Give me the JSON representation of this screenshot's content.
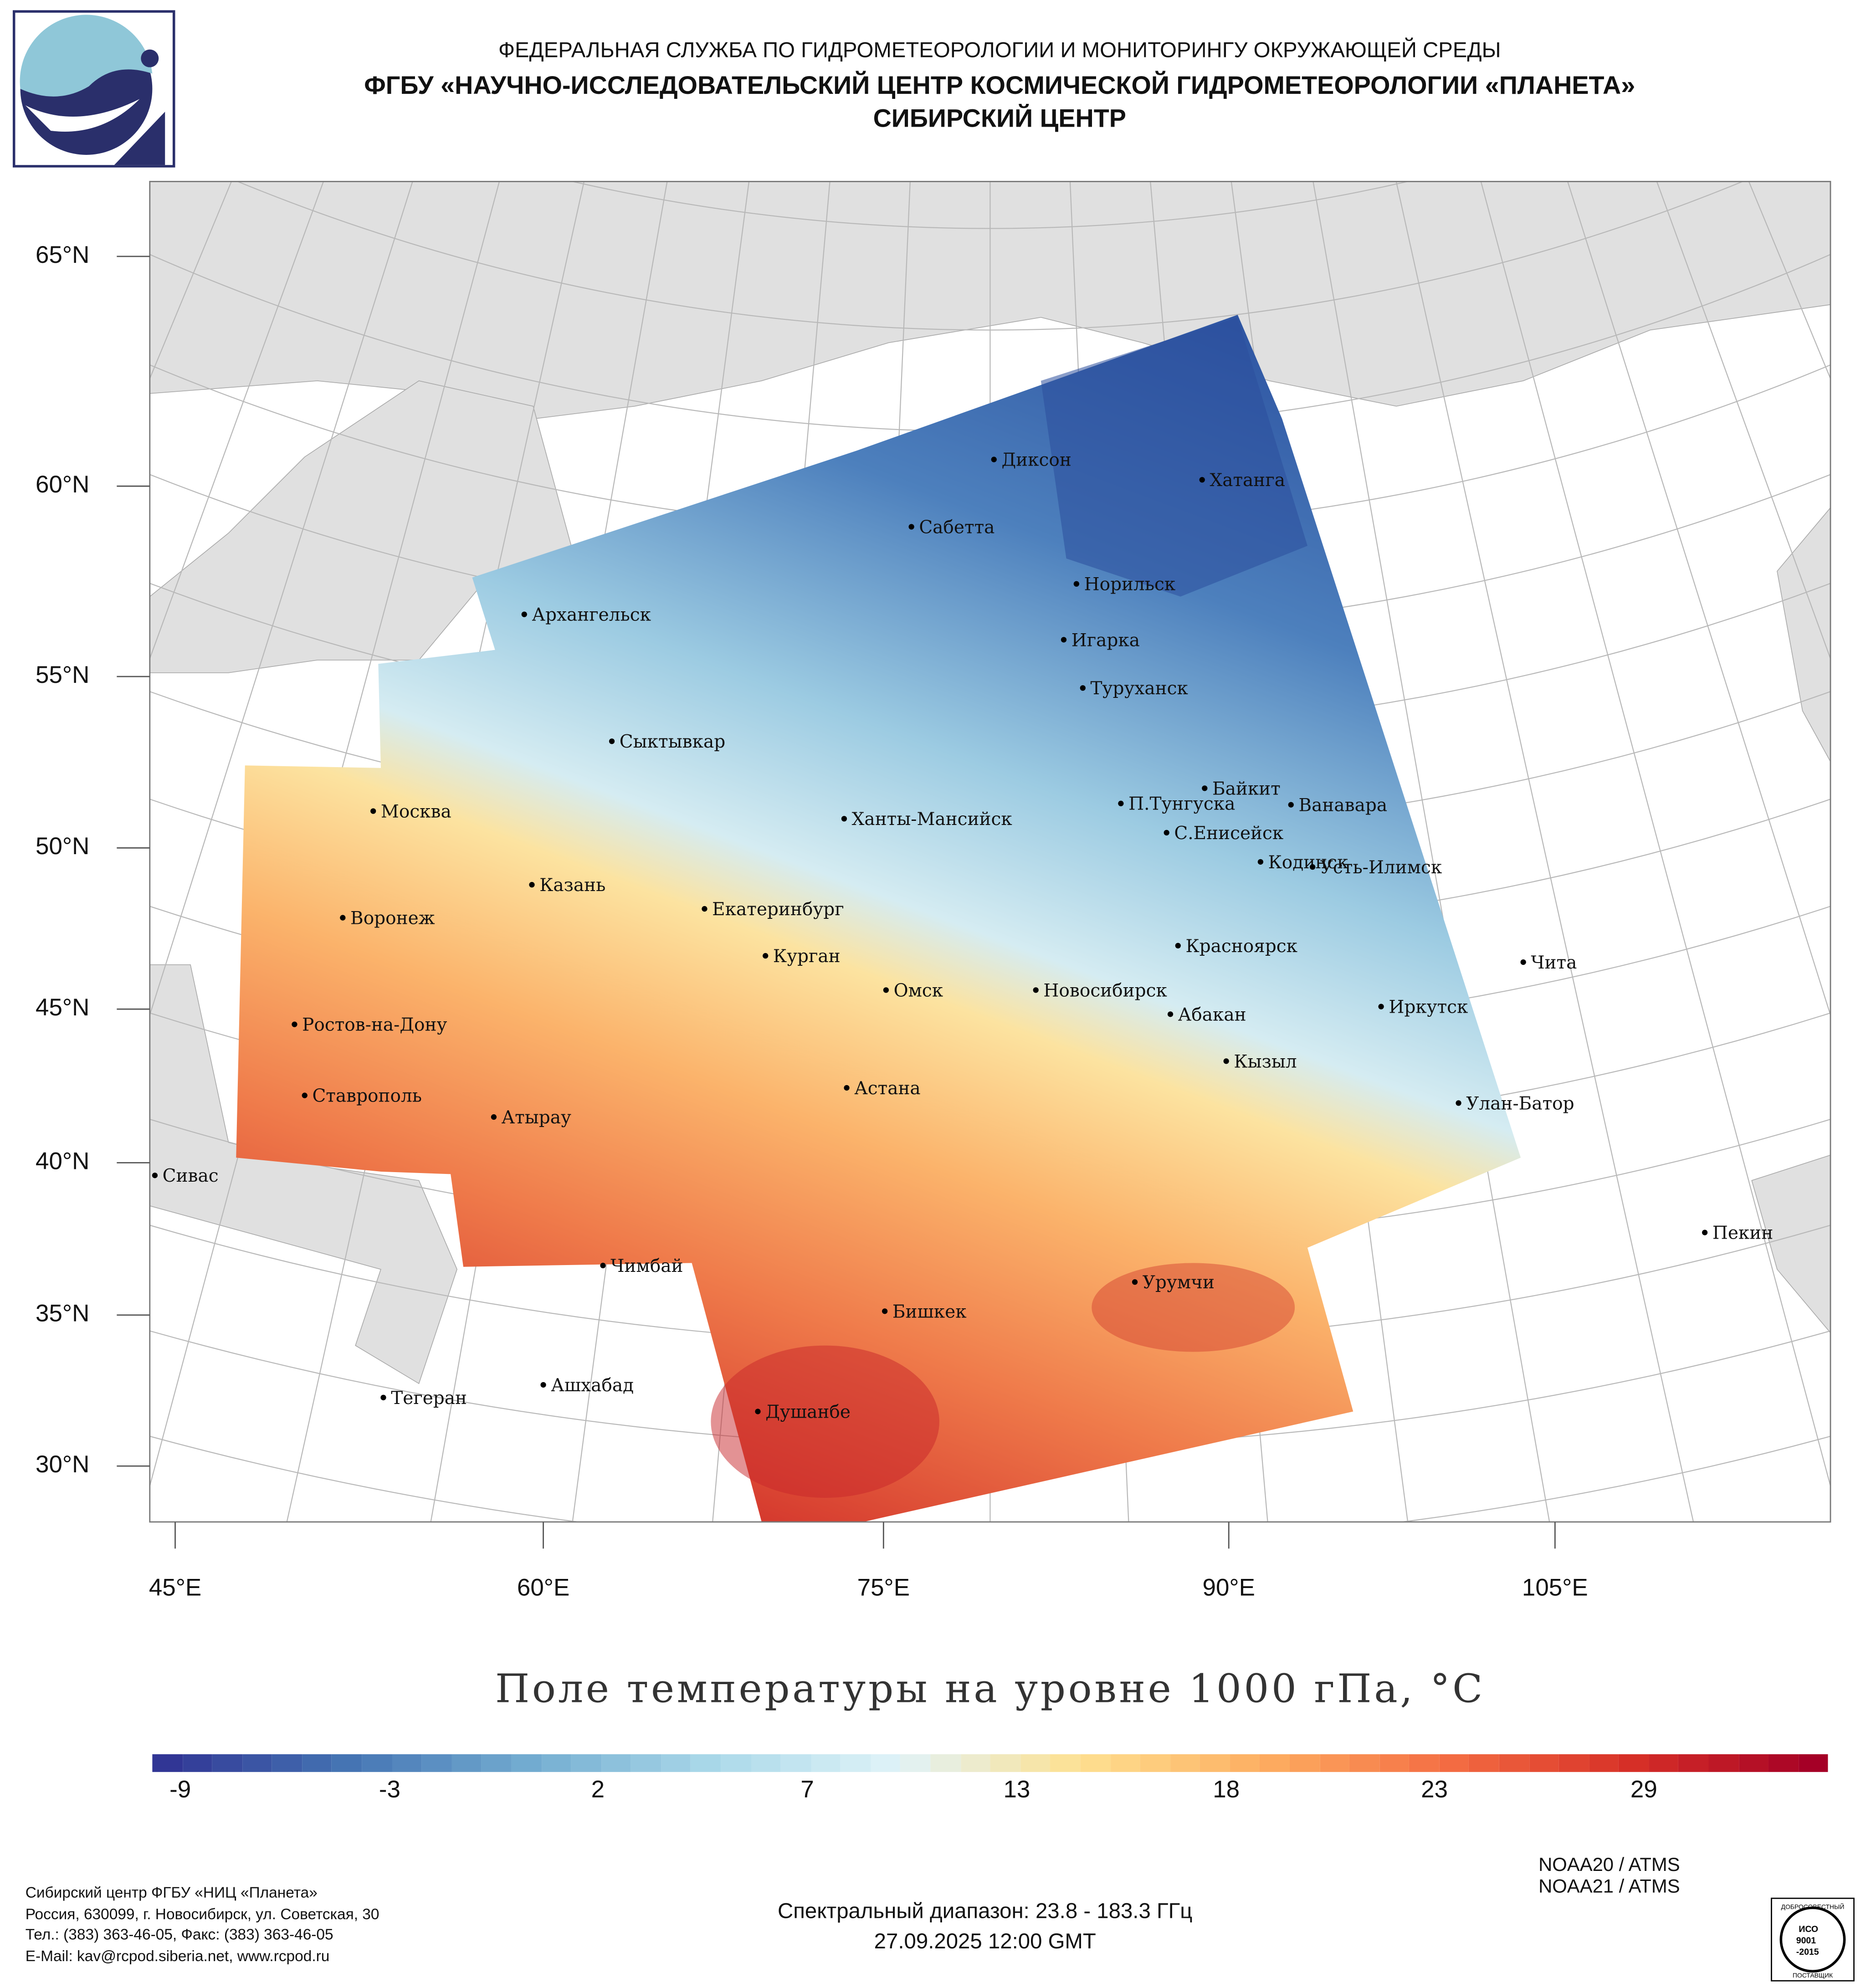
{
  "header": {
    "line1": "ФЕДЕРАЛЬНАЯ СЛУЖБА ПО ГИДРОМЕТЕОРОЛОГИИ И МОНИТОРИНГУ ОКРУЖАЮЩЕЙ СРЕДЫ",
    "line2": "ФГБУ «НАУЧНО-ИССЛЕДОВАТЕЛЬСКИЙ ЦЕНТР КОСМИЧЕСКОЙ ГИДРОМЕТЕОРОЛОГИИ «ПЛАНЕТА»",
    "line3": "СИБИРСКИЙ ЦЕНТР"
  },
  "map": {
    "lat_labels": [
      "65°N",
      "60°N",
      "55°N",
      "50°N",
      "45°N",
      "40°N",
      "35°N",
      "30°N"
    ],
    "lon_labels": [
      "45°E",
      "60°E",
      "75°E",
      "90°E",
      "105°E"
    ],
    "cities": [
      "Диксон",
      "Хатанга",
      "Сабетта",
      "Архангельск",
      "Норильск",
      "Игарка",
      "Туруханск",
      "Сыктывкар",
      "Байкит",
      "Москва",
      "П.Тунгуска",
      "Ванавара",
      "Ханты-Мансийск",
      "С.Енисейск",
      "Кодинск",
      "Усть-Илимск",
      "Казань",
      "Екатеринбург",
      "Воронеж",
      "Красноярск",
      "Курган",
      "Чита",
      "Омск",
      "Новосибирск",
      "Иркутск",
      "Абакан",
      "Ростов-на-Дону",
      "Кызыл",
      "Астана",
      "Ставрополь",
      "Улан-Батор",
      "Атырау",
      "Сивас",
      "Пекин",
      "Чимбай",
      "Урумчи",
      "Бишкек",
      "Ашхабад",
      "Тегеран",
      "Душанбе"
    ]
  },
  "title": "Поле температуры на уровне 1000 гПа, °C",
  "colorbar": {
    "ticks": [
      "-9",
      "-3",
      "2",
      "7",
      "13",
      "18",
      "23",
      "29"
    ],
    "colors": [
      "#313695",
      "#4575b4",
      "#74add1",
      "#abd9e9",
      "#e0f3f8",
      "#fee090",
      "#fdae61",
      "#f46d43",
      "#d73027",
      "#a50026"
    ]
  },
  "footer": {
    "org": [
      "Сибирский центр ФГБУ «НИЦ «Планета»",
      "Россия, 630099, г. Новосибирск, ул. Советская, 30",
      "Тел.: (383) 363-46-05, Факс: (383) 363-46-05",
      "E-Mail: kav@rcpod.siberia.net, www.rcpod.ru"
    ],
    "spectral": "Спектральный диапазон: 23.8 - 183.3 ГГц",
    "datetime": "27.09.2025 12:00 GMT",
    "satellites": [
      "NOAA20 / ATMS",
      "NOAA21 / ATMS"
    ],
    "iso_badge": [
      "ДОБРОСОВЕСТНЫЙ",
      "ИСО",
      "9001",
      "-2015",
      "ПОСТАВЩИК"
    ]
  }
}
